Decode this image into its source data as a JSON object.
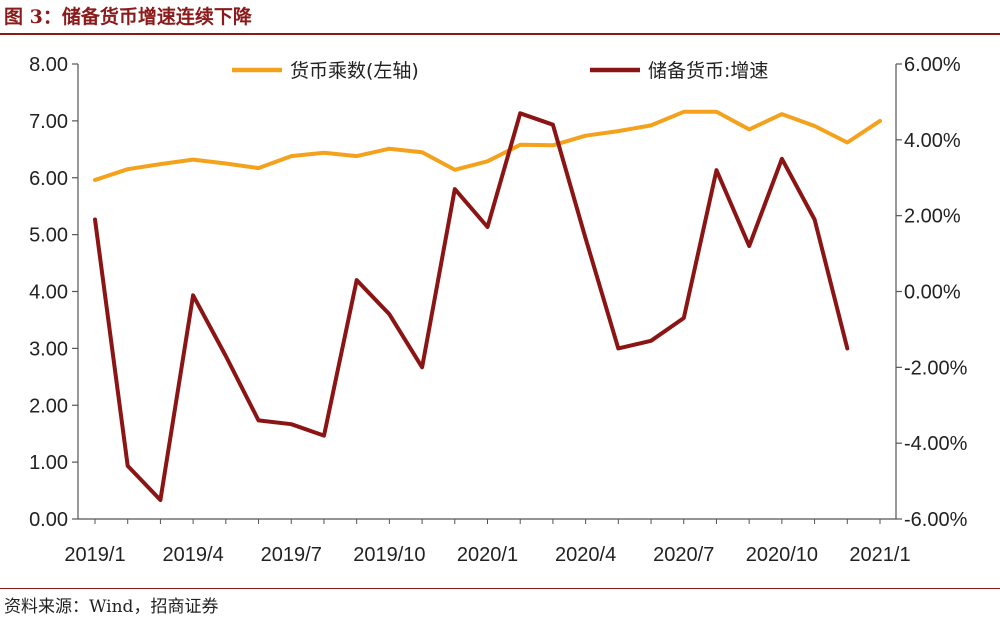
{
  "header": {
    "title": "图 3：储备货币增速连续下降"
  },
  "footer": {
    "source": "资料来源：Wind，招商证券"
  },
  "chart_data": {
    "type": "line",
    "x": [
      "2019/1",
      "2019/2",
      "2019/3",
      "2019/4",
      "2019/5",
      "2019/6",
      "2019/7",
      "2019/8",
      "2019/9",
      "2019/10",
      "2019/11",
      "2019/12",
      "2020/1",
      "2020/2",
      "2020/3",
      "2020/4",
      "2020/5",
      "2020/6",
      "2020/7",
      "2020/8",
      "2020/9",
      "2020/10",
      "2020/11",
      "2020/12",
      "2021/1"
    ],
    "x_tick_labels": [
      "2019/1",
      "2019/4",
      "2019/7",
      "2019/10",
      "2020/1",
      "2020/4",
      "2020/7",
      "2020/10",
      "2021/1"
    ],
    "series": [
      {
        "name": "货币乘数(左轴)",
        "axis": "left",
        "color": "#f4a11c",
        "values": [
          5.96,
          6.15,
          6.24,
          6.32,
          6.25,
          6.17,
          6.38,
          6.44,
          6.38,
          6.51,
          6.45,
          6.14,
          6.29,
          6.58,
          6.57,
          6.74,
          6.82,
          6.92,
          7.16,
          7.16,
          6.85,
          7.12,
          6.91,
          6.62,
          7.0
        ]
      },
      {
        "name": "储备货币:增速",
        "axis": "right",
        "color": "#8b1414",
        "values": [
          1.9,
          -4.6,
          -5.5,
          -0.1,
          -1.7,
          -3.4,
          -3.5,
          -3.8,
          0.3,
          -0.6,
          -2.0,
          2.7,
          1.7,
          4.7,
          4.4,
          1.4,
          -1.5,
          -1.3,
          -0.7,
          3.2,
          1.2,
          3.5,
          1.9,
          -1.5,
          null
        ]
      }
    ],
    "y_left": {
      "ticks": [
        "0.00",
        "1.00",
        "2.00",
        "3.00",
        "4.00",
        "5.00",
        "6.00",
        "7.00",
        "8.00"
      ],
      "range": [
        0,
        8
      ]
    },
    "y_right": {
      "ticks": [
        "-6.00%",
        "-4.00%",
        "-2.00%",
        "0.00%",
        "2.00%",
        "4.00%",
        "6.00%"
      ],
      "range": [
        -6,
        6
      ]
    },
    "grid": false,
    "legend_position": "top"
  }
}
